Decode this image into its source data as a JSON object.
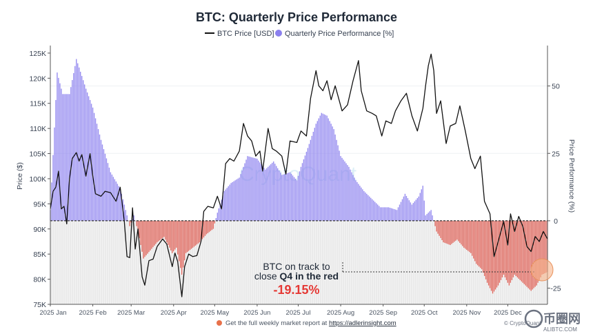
{
  "title": "BTC: Quarterly Price Performance",
  "legend": {
    "price_label": "BTC Price [USD]",
    "perf_label": "Quarterly Price Performance [%]"
  },
  "colors": {
    "price_line": "#111111",
    "positive_bar": "#8b80ee",
    "negative_bar": "#e05a4f",
    "zero_line": "#333333",
    "annotation_value": "#e53935"
  },
  "annotation": {
    "line1": "BTC on track to",
    "line2_prefix": "close ",
    "line2_bold": "Q4 in the red",
    "value": "-19.15%"
  },
  "footer": {
    "text": "Get the full weekly market report at ",
    "link": "https://adlerinsight.com"
  },
  "watermark": "CryptoQuant",
  "copyright": "© CryptoQuant",
  "site_logo": {
    "text": "币圈网",
    "sub": "ALIBTC.COM"
  },
  "chart_data": {
    "type": "line+bar",
    "title": "BTC: Quarterly Price Performance",
    "xlabel": "",
    "ylabel_left": "Price ($)",
    "ylabel_right": "Price Performance (%)",
    "x_tick_labels": [
      "2025 Jan",
      "2025 Feb",
      "2025 Mar",
      "2025 Apr",
      "2025 May",
      "2025 Jun",
      "2025 Jul",
      "2025 Aug",
      "2025 Sep",
      "2025 Oct",
      "2025 Nov",
      "2025 Dec"
    ],
    "x_range": [
      "2025-01-01",
      "2025-12-30"
    ],
    "y_left_ticks": [
      "75K",
      "80K",
      "85K",
      "90K",
      "95K",
      "100K",
      "105K",
      "110K",
      "115K",
      "120K",
      "125K"
    ],
    "y_left_range": [
      75000,
      126500
    ],
    "y_right_ticks": [
      "-25",
      "0",
      "25",
      "50"
    ],
    "y_right_range": [
      -31,
      65
    ],
    "legend_position": "top-center",
    "grid": true,
    "series": [
      {
        "name": "BTC Price [USD]",
        "kind": "line",
        "points": [
          [
            "2025-01-01",
            94000
          ],
          [
            "2025-01-03",
            97500
          ],
          [
            "2025-01-05",
            98300
          ],
          [
            "2025-01-07",
            101500
          ],
          [
            "2025-01-09",
            94000
          ],
          [
            "2025-01-11",
            94500
          ],
          [
            "2025-01-13",
            91000
          ],
          [
            "2025-01-15",
            100000
          ],
          [
            "2025-01-17",
            104000
          ],
          [
            "2025-01-20",
            105200
          ],
          [
            "2025-01-22",
            103500
          ],
          [
            "2025-01-24",
            104800
          ],
          [
            "2025-01-27",
            100500
          ],
          [
            "2025-01-30",
            105000
          ],
          [
            "2025-02-01",
            100500
          ],
          [
            "2025-02-03",
            97000
          ],
          [
            "2025-02-07",
            96500
          ],
          [
            "2025-02-10",
            97500
          ],
          [
            "2025-02-14",
            97200
          ],
          [
            "2025-02-18",
            95500
          ],
          [
            "2025-02-21",
            98300
          ],
          [
            "2025-02-24",
            91500
          ],
          [
            "2025-02-26",
            84500
          ],
          [
            "2025-02-28",
            84300
          ],
          [
            "2025-03-02",
            94200
          ],
          [
            "2025-03-04",
            86000
          ],
          [
            "2025-03-06",
            90000
          ],
          [
            "2025-03-09",
            80500
          ],
          [
            "2025-03-11",
            78800
          ],
          [
            "2025-03-14",
            83700
          ],
          [
            "2025-03-17",
            84000
          ],
          [
            "2025-03-20",
            86500
          ],
          [
            "2025-03-24",
            88000
          ],
          [
            "2025-03-27",
            87000
          ],
          [
            "2025-03-31",
            82500
          ],
          [
            "2025-04-02",
            85200
          ],
          [
            "2025-04-04",
            83500
          ],
          [
            "2025-04-07",
            76500
          ],
          [
            "2025-04-09",
            82500
          ],
          [
            "2025-04-12",
            85000
          ],
          [
            "2025-04-15",
            84500
          ],
          [
            "2025-04-18",
            84700
          ],
          [
            "2025-04-21",
            87500
          ],
          [
            "2025-04-23",
            93500
          ],
          [
            "2025-04-26",
            94500
          ],
          [
            "2025-04-30",
            94200
          ],
          [
            "2025-05-03",
            96500
          ],
          [
            "2025-05-06",
            94000
          ],
          [
            "2025-05-09",
            103000
          ],
          [
            "2025-05-12",
            104000
          ],
          [
            "2025-05-15",
            103500
          ],
          [
            "2025-05-19",
            105500
          ],
          [
            "2025-05-22",
            111000
          ],
          [
            "2025-05-25",
            108500
          ],
          [
            "2025-05-28",
            107500
          ],
          [
            "2025-05-31",
            104500
          ],
          [
            "2025-06-03",
            105500
          ],
          [
            "2025-06-05",
            101500
          ],
          [
            "2025-06-09",
            110000
          ],
          [
            "2025-06-12",
            106000
          ],
          [
            "2025-06-15",
            105500
          ],
          [
            "2025-06-19",
            104500
          ],
          [
            "2025-06-22",
            100900
          ],
          [
            "2025-06-25",
            107500
          ],
          [
            "2025-06-30",
            107200
          ],
          [
            "2025-07-03",
            109500
          ],
          [
            "2025-07-07",
            108500
          ],
          [
            "2025-07-10",
            116000
          ],
          [
            "2025-07-14",
            121500
          ],
          [
            "2025-07-16",
            118500
          ],
          [
            "2025-07-19",
            117500
          ],
          [
            "2025-07-22",
            119500
          ],
          [
            "2025-07-25",
            115700
          ],
          [
            "2025-07-28",
            118500
          ],
          [
            "2025-08-02",
            113500
          ],
          [
            "2025-08-06",
            114700
          ],
          [
            "2025-08-10",
            119500
          ],
          [
            "2025-08-14",
            123500
          ],
          [
            "2025-08-16",
            117500
          ],
          [
            "2025-08-20",
            113500
          ],
          [
            "2025-08-24",
            113000
          ],
          [
            "2025-08-27",
            112500
          ],
          [
            "2025-08-31",
            108500
          ],
          [
            "2025-09-03",
            111500
          ],
          [
            "2025-09-07",
            111000
          ],
          [
            "2025-09-10",
            113500
          ],
          [
            "2025-09-14",
            115500
          ],
          [
            "2025-09-18",
            117000
          ],
          [
            "2025-09-22",
            112500
          ],
          [
            "2025-09-26",
            109500
          ],
          [
            "2025-09-30",
            114000
          ],
          [
            "2025-10-02",
            118500
          ],
          [
            "2025-10-04",
            122500
          ],
          [
            "2025-10-06",
            124800
          ],
          [
            "2025-10-08",
            121500
          ],
          [
            "2025-10-10",
            113000
          ],
          [
            "2025-10-13",
            115500
          ],
          [
            "2025-10-17",
            107000
          ],
          [
            "2025-10-20",
            110500
          ],
          [
            "2025-10-24",
            111000
          ],
          [
            "2025-10-27",
            114500
          ],
          [
            "2025-10-31",
            109500
          ],
          [
            "2025-11-04",
            104000
          ],
          [
            "2025-11-07",
            102000
          ],
          [
            "2025-11-11",
            104500
          ],
          [
            "2025-11-14",
            95500
          ],
          [
            "2025-11-18",
            93000
          ],
          [
            "2025-11-21",
            84500
          ],
          [
            "2025-11-24",
            87500
          ],
          [
            "2025-11-28",
            91500
          ],
          [
            "2025-12-01",
            86800
          ],
          [
            "2025-12-03",
            93000
          ],
          [
            "2025-12-06",
            89500
          ],
          [
            "2025-12-09",
            92500
          ],
          [
            "2025-12-12",
            90500
          ],
          [
            "2025-12-15",
            86500
          ],
          [
            "2025-12-18",
            85500
          ],
          [
            "2025-12-21",
            88500
          ],
          [
            "2025-12-24",
            87500
          ],
          [
            "2025-12-27",
            89500
          ],
          [
            "2025-12-30",
            88000
          ]
        ]
      },
      {
        "name": "Quarterly Price Performance [%]",
        "kind": "bar",
        "points": [
          [
            "2025-01-01",
            4
          ],
          [
            "2025-01-06",
            55
          ],
          [
            "2025-01-10",
            47
          ],
          [
            "2025-01-15",
            47
          ],
          [
            "2025-01-20",
            60
          ],
          [
            "2025-01-27",
            49
          ],
          [
            "2025-02-01",
            42
          ],
          [
            "2025-02-07",
            30
          ],
          [
            "2025-02-14",
            18
          ],
          [
            "2025-02-21",
            12
          ],
          [
            "2025-02-28",
            -2
          ],
          [
            "2025-03-03",
            2
          ],
          [
            "2025-03-06",
            -4
          ],
          [
            "2025-03-10",
            -14
          ],
          [
            "2025-03-15",
            -11
          ],
          [
            "2025-03-20",
            -8
          ],
          [
            "2025-03-25",
            -6
          ],
          [
            "2025-03-31",
            -12
          ],
          [
            "2025-04-03",
            -10
          ],
          [
            "2025-04-07",
            -20
          ],
          [
            "2025-04-10",
            -12
          ],
          [
            "2025-04-15",
            -10
          ],
          [
            "2025-04-20",
            -8
          ],
          [
            "2025-04-25",
            -5
          ],
          [
            "2025-04-30",
            -3
          ],
          [
            "2025-05-03",
            3
          ],
          [
            "2025-05-08",
            11
          ],
          [
            "2025-05-13",
            14
          ],
          [
            "2025-05-19",
            16
          ],
          [
            "2025-05-25",
            24
          ],
          [
            "2025-06-01",
            23
          ],
          [
            "2025-06-07",
            19
          ],
          [
            "2025-06-13",
            22
          ],
          [
            "2025-06-19",
            17
          ],
          [
            "2025-06-25",
            18
          ],
          [
            "2025-06-30",
            15
          ],
          [
            "2025-07-03",
            20
          ],
          [
            "2025-07-08",
            27
          ],
          [
            "2025-07-14",
            36
          ],
          [
            "2025-07-18",
            40
          ],
          [
            "2025-07-22",
            39
          ],
          [
            "2025-07-27",
            34
          ],
          [
            "2025-08-01",
            24
          ],
          [
            "2025-08-07",
            20
          ],
          [
            "2025-08-12",
            15
          ],
          [
            "2025-08-18",
            11
          ],
          [
            "2025-08-24",
            8
          ],
          [
            "2025-08-30",
            5
          ],
          [
            "2025-09-05",
            5
          ],
          [
            "2025-09-11",
            4
          ],
          [
            "2025-09-17",
            10
          ],
          [
            "2025-09-22",
            6
          ],
          [
            "2025-09-27",
            9
          ],
          [
            "2025-09-30",
            13
          ],
          [
            "2025-10-02",
            2
          ],
          [
            "2025-10-06",
            4
          ],
          [
            "2025-10-10",
            -4
          ],
          [
            "2025-10-15",
            -8
          ],
          [
            "2025-10-20",
            -9
          ],
          [
            "2025-10-25",
            -7
          ],
          [
            "2025-10-30",
            -10
          ],
          [
            "2025-11-04",
            -12
          ],
          [
            "2025-11-08",
            -16
          ],
          [
            "2025-11-12",
            -18
          ],
          [
            "2025-11-16",
            -23
          ],
          [
            "2025-11-20",
            -27
          ],
          [
            "2025-11-24",
            -24
          ],
          [
            "2025-11-28",
            -20
          ],
          [
            "2025-12-02",
            -24
          ],
          [
            "2025-12-06",
            -20
          ],
          [
            "2025-12-10",
            -22
          ],
          [
            "2025-12-14",
            -24
          ],
          [
            "2025-12-18",
            -26
          ],
          [
            "2025-12-22",
            -24
          ],
          [
            "2025-12-26",
            -20
          ],
          [
            "2025-12-30",
            -19
          ]
        ]
      }
    ]
  }
}
